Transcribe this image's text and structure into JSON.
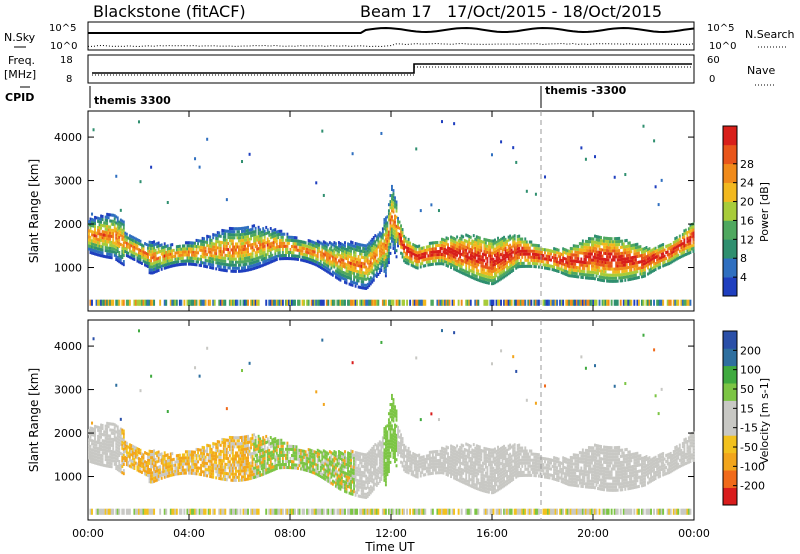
{
  "header": {
    "station": "Blackstone (fitACF)",
    "beam": "Beam 17",
    "dates": "17/Oct/2015 - 18/Oct/2015"
  },
  "strips": {
    "nsky": {
      "label": "N.Sky",
      "tick_top": "10^5",
      "tick_bottom": "10^0"
    },
    "nsearch": {
      "label": "N.Search",
      "tick_top": "10^5",
      "tick_bottom": "10^0"
    },
    "freq": {
      "label_top": "Freq.",
      "label_unit": "[MHz]",
      "tick_top": "18",
      "tick_bottom": "8"
    },
    "nave": {
      "label": "Nave",
      "tick_top": "60",
      "tick_bottom": "0"
    },
    "cpid": {
      "label": "CPID",
      "mode1": "themis 3300",
      "mode2": "themis -3300"
    }
  },
  "colors": {
    "power_scale": [
      "#1f3fbf",
      "#2f6fc0",
      "#2f8f6f",
      "#4fa85f",
      "#a8cc3a",
      "#f2b81e",
      "#f08a1a",
      "#e8551a",
      "#d81f1a"
    ],
    "velocity_scale": [
      "#d91c1c",
      "#f06a1a",
      "#f2a51c",
      "#f2c11e",
      "#c8c8c4",
      "#c8c8c4",
      "#7cc544",
      "#3faa3f",
      "#2e6f9f",
      "#2a4fa8"
    ]
  },
  "chart_data": [
    {
      "type": "heatmap",
      "name": "power-panel",
      "xlabel": "Time UT",
      "ylabel": "Slant Range [km]",
      "xlim": [
        0,
        24
      ],
      "ylim": [
        0,
        4600
      ],
      "x_ticks": [
        "00:00",
        "04:00",
        "08:00",
        "12:00",
        "16:00",
        "20:00",
        "00:00"
      ],
      "y_ticks": [
        1000,
        2000,
        3000,
        4000
      ],
      "colorbar": {
        "label": "Power [dB]",
        "ticks": [
          4,
          8,
          12,
          16,
          20,
          24,
          28
        ]
      },
      "main_echo_band_km": {
        "hours": [
          0,
          1,
          1.5,
          2.5,
          4,
          6,
          7.5,
          9,
          10,
          11,
          11.8,
          12,
          12.5,
          13,
          14,
          15,
          16,
          17,
          18,
          19,
          20,
          21,
          22,
          23,
          24
        ],
        "center": [
          1700,
          1700,
          1500,
          1200,
          1300,
          1400,
          1500,
          1300,
          1100,
          1000,
          1500,
          2200,
          1400,
          1200,
          1350,
          1250,
          1100,
          1350,
          1200,
          1100,
          1200,
          1150,
          1100,
          1300,
          1700
        ]
      }
    },
    {
      "type": "heatmap",
      "name": "velocity-panel",
      "xlabel": "Time UT",
      "ylabel": "Slant Range [km]",
      "xlim": [
        0,
        24
      ],
      "ylim": [
        0,
        4600
      ],
      "x_ticks": [
        "00:00",
        "04:00",
        "08:00",
        "12:00",
        "16:00",
        "20:00",
        "00:00"
      ],
      "y_ticks": [
        1000,
        2000,
        3000,
        4000
      ],
      "colorbar": {
        "label": "Velocity [m s-1]",
        "ticks": [
          200,
          100,
          50,
          15,
          -15,
          -50,
          -100,
          -200
        ]
      }
    }
  ],
  "axis": {
    "xlabel": "Time UT"
  }
}
